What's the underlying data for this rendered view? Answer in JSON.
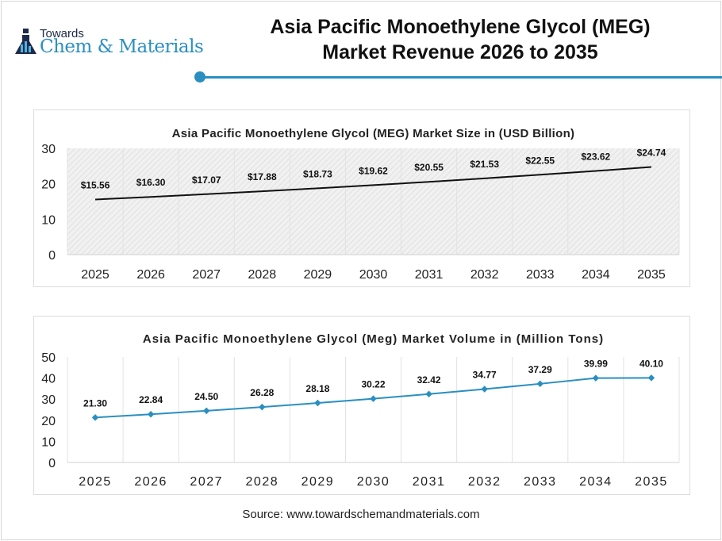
{
  "header": {
    "logo_top": "Towards",
    "logo_main": "Chem & Materials",
    "title_line1": "Asia Pacific Monoethylene Glycol (MEG)",
    "title_line2": "Market Revenue 2026 to 2035",
    "accent": "#2a8fc0"
  },
  "chart_data": [
    {
      "type": "line",
      "title": "Asia Pacific Monoethylene Glycol (MEG) Market Size in (USD Billion)",
      "categories": [
        "2025",
        "2026",
        "2027",
        "2028",
        "2029",
        "2030",
        "2031",
        "2032",
        "2033",
        "2034",
        "2035"
      ],
      "values": [
        15.56,
        16.3,
        17.07,
        17.88,
        18.73,
        19.62,
        20.55,
        21.53,
        22.55,
        23.62,
        24.74
      ],
      "labels": [
        "$15.56",
        "$16.30",
        "$17.07",
        "$17.88",
        "$18.73",
        "$19.62",
        "$20.55",
        "$21.53",
        "$22.55",
        "$23.62",
        "$24.74"
      ],
      "ylim": [
        0,
        30
      ],
      "yticks": [
        0,
        10,
        20,
        30
      ],
      "line_color": "#111111",
      "grid": true
    },
    {
      "type": "line",
      "title": "Asia Pacific Monoethylene Glycol (Meg) Market Volume in (Million Tons)",
      "categories": [
        "2025",
        "2026",
        "2027",
        "2028",
        "2029",
        "2030",
        "2031",
        "2032",
        "2033",
        "2034",
        "2035"
      ],
      "values": [
        21.3,
        22.84,
        24.5,
        26.28,
        28.18,
        30.22,
        32.42,
        34.77,
        37.29,
        39.99,
        40.1
      ],
      "labels": [
        "21.30",
        "22.84",
        "24.50",
        "26.28",
        "28.18",
        "30.22",
        "32.42",
        "34.77",
        "37.29",
        "39.99",
        "40.10"
      ],
      "ylim": [
        0,
        50
      ],
      "yticks": [
        0,
        10,
        20,
        30,
        40,
        50
      ],
      "line_color": "#2a8fc0",
      "grid": true
    }
  ],
  "source": "Source: www.towardschemandmaterials.com"
}
